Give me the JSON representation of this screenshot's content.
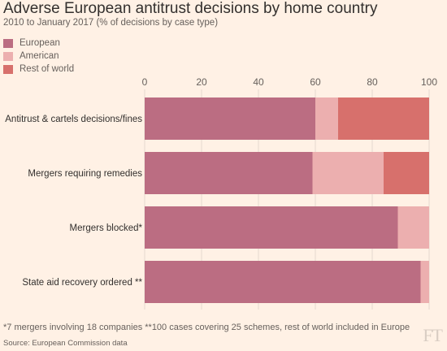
{
  "chart_data": {
    "type": "bar",
    "orientation": "horizontal",
    "stacked": true,
    "title": "Adverse European antitrust decisions by home country",
    "subtitle": "2010 to January 2017 (% of decisions by case type)",
    "categories": [
      "Antitrust & cartels decisions/fines",
      "Mergers requiring remedies",
      "Mergers blocked*",
      "State aid recovery ordered **"
    ],
    "series": [
      {
        "name": "European",
        "color": "#bb6d82",
        "values": [
          60,
          59,
          89,
          97
        ]
      },
      {
        "name": "American",
        "color": "#ecafaf",
        "values": [
          8,
          25,
          11,
          3
        ]
      },
      {
        "name": "Rest of world",
        "color": "#d7706c",
        "values": [
          32,
          16,
          0,
          0
        ]
      }
    ],
    "xlim": [
      0,
      100
    ],
    "xticks": [
      "0",
      "20",
      "40",
      "60",
      "80",
      "100"
    ],
    "xaxis_position": "top",
    "legend_position": "top-left"
  },
  "footnote": "*7 mergers involving 18 companies **100 cases covering 25 schemes, rest of world included in Europe",
  "source": "Source: European Commission data",
  "logo": "FT"
}
